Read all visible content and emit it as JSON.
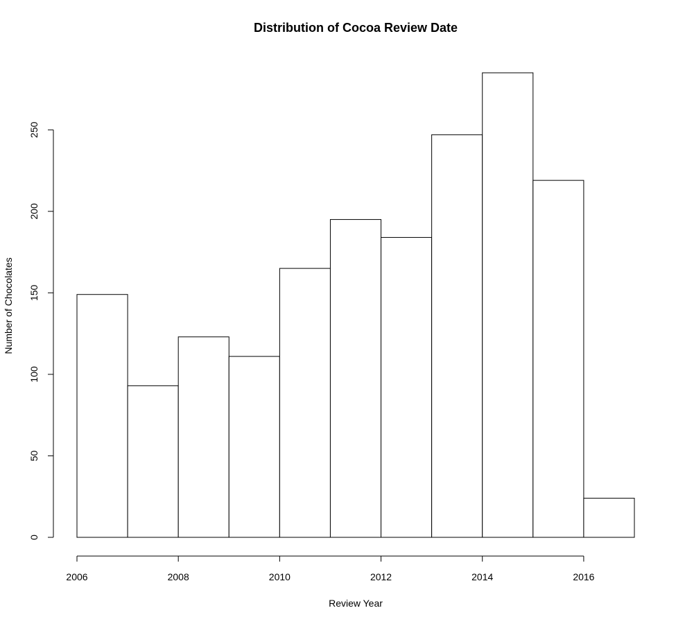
{
  "chart_data": {
    "type": "bar",
    "title": "Distribution of Cocoa Review Date",
    "xlabel": "Review Year",
    "ylabel": "Number of Chocolates",
    "bins": [
      {
        "start": 2006,
        "end": 2007,
        "count": 149
      },
      {
        "start": 2007,
        "end": 2008,
        "count": 93
      },
      {
        "start": 2008,
        "end": 2009,
        "count": 123
      },
      {
        "start": 2009,
        "end": 2010,
        "count": 111
      },
      {
        "start": 2010,
        "end": 2011,
        "count": 165
      },
      {
        "start": 2011,
        "end": 2012,
        "count": 195
      },
      {
        "start": 2012,
        "end": 2013,
        "count": 184
      },
      {
        "start": 2013,
        "end": 2014,
        "count": 247
      },
      {
        "start": 2014,
        "end": 2015,
        "count": 285
      },
      {
        "start": 2015,
        "end": 2016,
        "count": 219
      },
      {
        "start": 2016,
        "end": 2017,
        "count": 24
      }
    ],
    "xlim": [
      2006,
      2017
    ],
    "ylim": [
      0,
      285
    ],
    "xticks": [
      2006,
      2008,
      2010,
      2012,
      2014,
      2016
    ],
    "yticks": [
      0,
      50,
      100,
      150,
      200,
      250
    ],
    "grid": false,
    "legend": "none"
  }
}
